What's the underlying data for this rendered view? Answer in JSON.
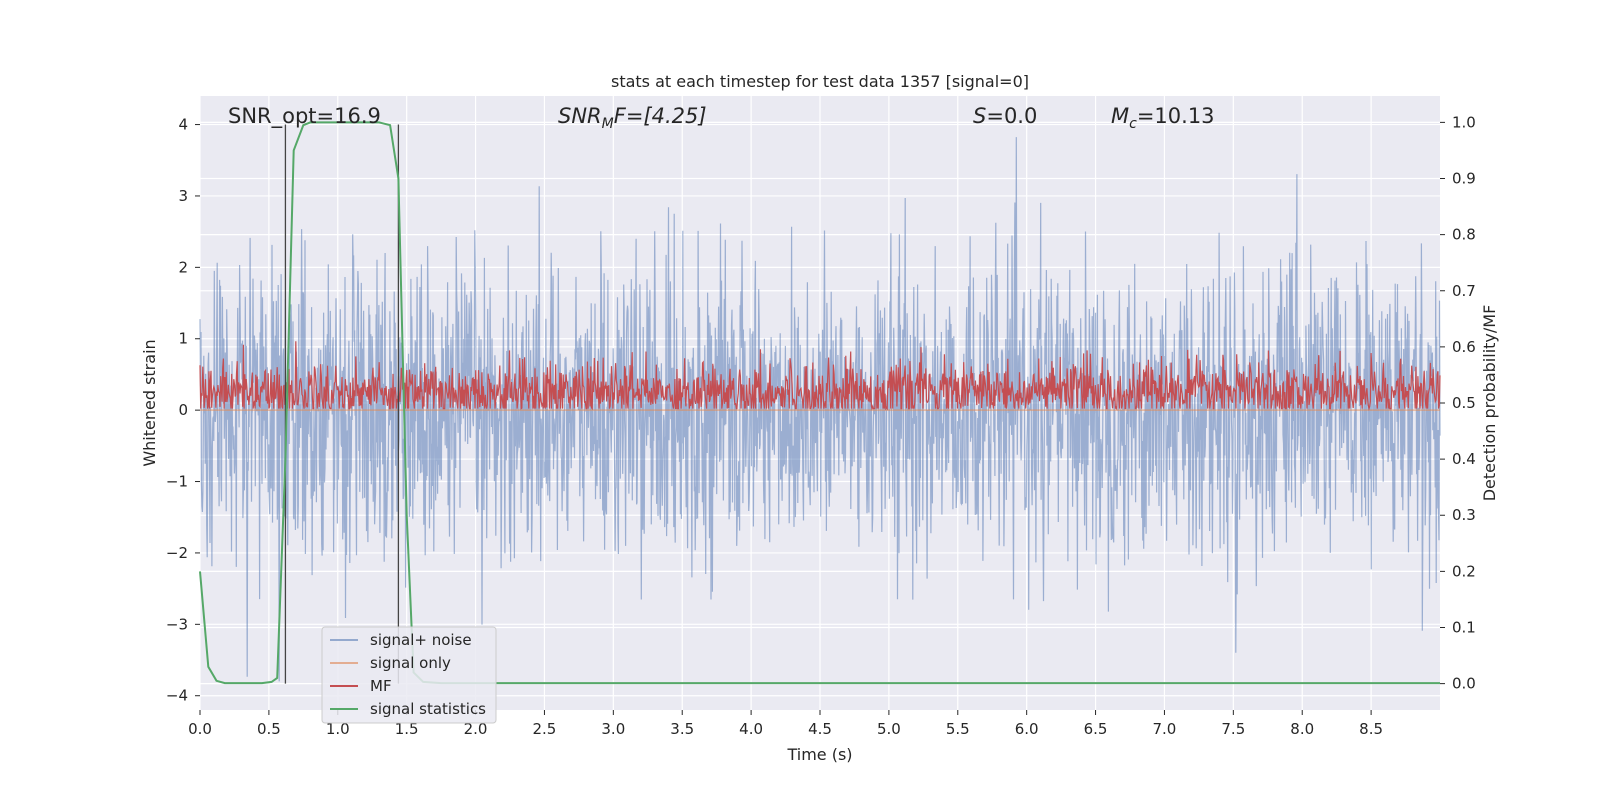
{
  "chart_data": {
    "type": "line",
    "title": "stats at each timestep for test data 1357 [signal=0]",
    "xlabel": "Time (s)",
    "ylabel": "Whitened strain",
    "ylabel_right": "Detection probability/MF",
    "xlim": [
      0.0,
      9.0
    ],
    "ylim": [
      -4.2,
      4.4
    ],
    "ylim_right": [
      -0.047,
      1.047
    ],
    "x_ticks": [
      0.0,
      0.5,
      1.0,
      1.5,
      2.0,
      2.5,
      3.0,
      3.5,
      4.0,
      4.5,
      5.0,
      5.5,
      6.0,
      6.5,
      7.0,
      7.5,
      8.0,
      8.5
    ],
    "x_tick_labels": [
      "0.0",
      "0.5",
      "1.0",
      "1.5",
      "2.0",
      "2.5",
      "3.0",
      "3.5",
      "4.0",
      "4.5",
      "5.0",
      "5.5",
      "6.0",
      "6.5",
      "7.0",
      "7.5",
      "8.0",
      "8.5"
    ],
    "y_ticks": [
      4,
      3,
      2,
      1,
      0,
      -1,
      -2,
      -3,
      -4
    ],
    "y_tick_labels": [
      "4",
      "3",
      "2",
      "1",
      "0",
      "−1",
      "−2",
      "−3",
      "−4"
    ],
    "y_ticks_right": [
      1.0,
      0.9,
      0.8,
      0.7,
      0.6,
      0.5,
      0.4,
      0.3,
      0.2,
      0.1,
      0.0
    ],
    "y_tick_labels_right": [
      "1.0",
      "0.9",
      "0.8",
      "0.7",
      "0.6",
      "0.5",
      "0.4",
      "0.3",
      "0.2",
      "0.1",
      "0.0"
    ],
    "grid": true,
    "legend_position": "lower-left",
    "annotations": {
      "snr_opt": "SNR_opt=16.9",
      "snr_mf_label": "SNR",
      "snr_mf_sub": "M",
      "snr_mf_rest": "F=[4.25]",
      "s_label": "S",
      "s_value": "=0.0",
      "mc_label": "M",
      "mc_sub": "c",
      "mc_value": "=10.13"
    },
    "vlines_x": [
      0.62,
      1.44
    ],
    "series": [
      {
        "name": "signal+ noise",
        "color": "#4c72b0",
        "axis": "left",
        "style": "dense noise",
        "t_range": [
          0.0,
          9.0
        ],
        "approx_std": 1.0,
        "approx_range": [
          -3.8,
          4.0
        ]
      },
      {
        "name": "signal only",
        "color": "#dd8452",
        "axis": "left",
        "t": [
          0.0,
          9.0
        ],
        "values": [
          0.0,
          0.0
        ]
      },
      {
        "name": "MF",
        "color": "#c44e52",
        "axis": "right",
        "style": "dense noise",
        "t_range": [
          0.0,
          9.0
        ],
        "approx_mean": 0.52,
        "approx_range": [
          0.49,
          0.61
        ]
      },
      {
        "name": "signal statistics",
        "color": "#55a868",
        "axis": "right",
        "t": [
          0.0,
          0.06,
          0.12,
          0.18,
          0.3,
          0.45,
          0.52,
          0.56,
          0.62,
          0.68,
          0.75,
          0.8,
          1.0,
          1.2,
          1.3,
          1.38,
          1.44,
          1.5,
          1.55,
          1.62,
          1.75,
          2.0,
          3.0,
          4.0,
          5.0,
          6.0,
          7.0,
          8.0,
          9.0
        ],
        "values": [
          0.2,
          0.03,
          0.005,
          0.001,
          0.001,
          0.001,
          0.003,
          0.01,
          0.4,
          0.95,
          0.995,
          1.0,
          1.0,
          1.0,
          1.0,
          0.995,
          0.9,
          0.3,
          0.02,
          0.003,
          0.001,
          0.001,
          0.001,
          0.001,
          0.001,
          0.001,
          0.001,
          0.001,
          0.001
        ]
      }
    ]
  }
}
